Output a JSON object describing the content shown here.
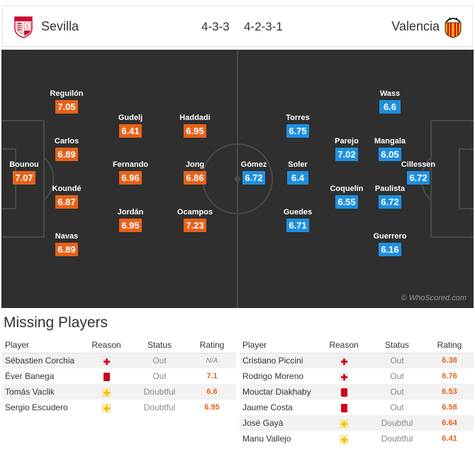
{
  "match": {
    "home": {
      "name": "Sevilla",
      "formation": "4-3-3"
    },
    "away": {
      "name": "Valencia",
      "formation": "4-2-3-1"
    }
  },
  "pitch": {
    "watermark": "© WhoScored.com",
    "home_players": [
      {
        "name": "Bounou",
        "rating": "7.07"
      },
      {
        "name": "Reguilón",
        "rating": "7.05"
      },
      {
        "name": "Carlos",
        "rating": "6.89"
      },
      {
        "name": "Koundé",
        "rating": "6.87"
      },
      {
        "name": "Navas",
        "rating": "6.89"
      },
      {
        "name": "Gudelj",
        "rating": "6.41"
      },
      {
        "name": "Fernando",
        "rating": "6.96"
      },
      {
        "name": "Jordán",
        "rating": "6.95"
      },
      {
        "name": "Haddadi",
        "rating": "6.95"
      },
      {
        "name": "Jong",
        "rating": "6.86"
      },
      {
        "name": "Ocampos",
        "rating": "7.23"
      }
    ],
    "away_players": [
      {
        "name": "Cillessen",
        "rating": "6.72"
      },
      {
        "name": "Wass",
        "rating": "6.6"
      },
      {
        "name": "Mangala",
        "rating": "6.05"
      },
      {
        "name": "Paulista",
        "rating": "6.72"
      },
      {
        "name": "Guerrero",
        "rating": "6.16"
      },
      {
        "name": "Parejo",
        "rating": "7.02"
      },
      {
        "name": "Coquelin",
        "rating": "6.55"
      },
      {
        "name": "Torres",
        "rating": "6.75"
      },
      {
        "name": "Soler",
        "rating": "6.4"
      },
      {
        "name": "Guedes",
        "rating": "6.71"
      },
      {
        "name": "Gómez",
        "rating": "6.72"
      }
    ]
  },
  "missing": {
    "title": "Missing Players",
    "headers": {
      "player": "Player",
      "reason": "Reason",
      "status": "Status",
      "rating": "Rating"
    },
    "home": [
      {
        "player": "Sébastien Corchia",
        "reason_icon": "injury-icon",
        "status": "Out",
        "rating": "N/A"
      },
      {
        "player": "Éver Banega",
        "reason_icon": "red-card-icon",
        "status": "Out",
        "rating": "7.1"
      },
      {
        "player": "Tomás Vaclik",
        "reason_icon": "doubtful-icon",
        "status": "Doubtful",
        "rating": "6.6"
      },
      {
        "player": "Sergio Escudero",
        "reason_icon": "doubtful-icon",
        "status": "Doubtful",
        "rating": "6.95"
      }
    ],
    "away": [
      {
        "player": "Cristiano Piccini",
        "reason_icon": "injury-icon",
        "status": "Out",
        "rating": "6.38"
      },
      {
        "player": "Rodrigo Moreno",
        "reason_icon": "injury-icon",
        "status": "Out",
        "rating": "6.76"
      },
      {
        "player": "Mouctar Diakhaby",
        "reason_icon": "red-card-icon",
        "status": "Out",
        "rating": "6.53"
      },
      {
        "player": "Jaume Costa",
        "reason_icon": "red-card-icon",
        "status": "Out",
        "rating": "6.58"
      },
      {
        "player": "José Gayà",
        "reason_icon": "doubtful-icon",
        "status": "Doubtful",
        "rating": "6.64"
      },
      {
        "player": "Manu Vallejo",
        "reason_icon": "doubtful-icon",
        "status": "Doubtful",
        "rating": "6.41"
      }
    ]
  },
  "colors": {
    "home_rating": "#e6621a",
    "away_rating": "#1e90e0",
    "pitch": "#2f2f2f"
  }
}
